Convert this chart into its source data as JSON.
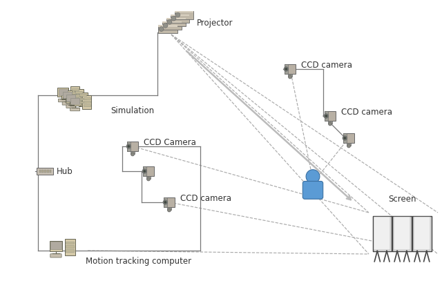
{
  "bg_color": "#ffffff",
  "labels": {
    "simulation": "Simulation",
    "projector": "Projector",
    "hub": "Hub",
    "motion_computer": "Motion tracking computer",
    "ccd_camera_left1": "CCD Camera",
    "ccd_camera_left2": "CCD camera",
    "ccd_camera_right1": "CCD camera",
    "ccd_camera_right2": "CCD camera",
    "screen": "Screen"
  },
  "text_color": "#333333",
  "line_color": "#777777",
  "dashed_color": "#aaaaaa",
  "comp_body": "#d4c9a8",
  "comp_screen": "#b0aaa0",
  "comp_dark": "#888880",
  "cam_body": "#b8b0a4",
  "hub_body": "#c8c0b4",
  "screen_body": "#d0d0d0"
}
